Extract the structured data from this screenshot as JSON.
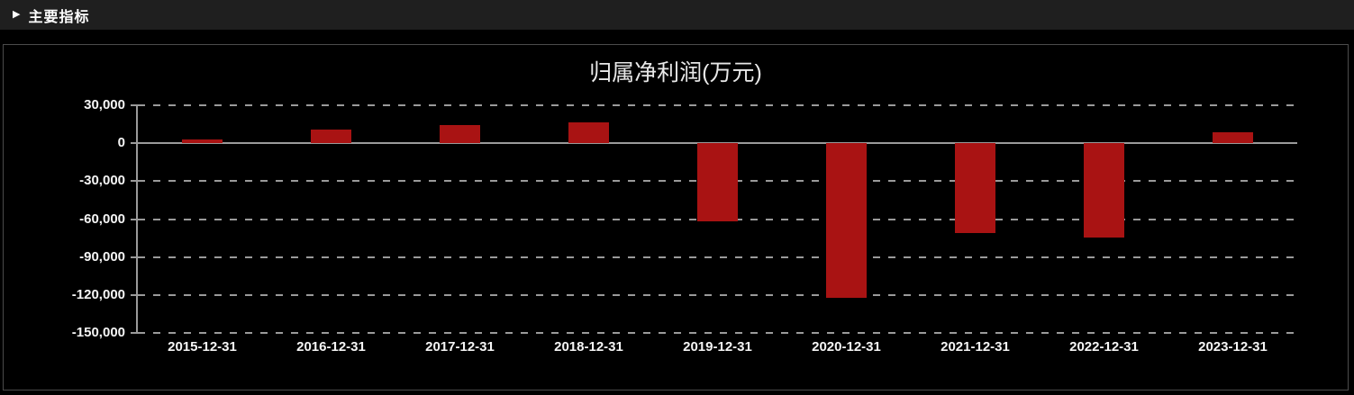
{
  "header": {
    "title": "主要指标",
    "arrow_icon": "▶"
  },
  "chart": {
    "title": "归属净利润(万元)"
  },
  "chart_data": {
    "type": "bar",
    "title": "归属净利润(万元)",
    "unit": "万元",
    "categories": [
      "2015-12-31",
      "2016-12-31",
      "2017-12-31",
      "2018-12-31",
      "2019-12-31",
      "2020-12-31",
      "2021-12-31",
      "2022-12-31",
      "2023-12-31"
    ],
    "values": [
      3000,
      11000,
      14300,
      16300,
      -61500,
      -122500,
      -71000,
      -74500,
      9000
    ],
    "yticks": [
      {
        "value": 30000,
        "label": "30,000"
      },
      {
        "value": 0,
        "label": "0"
      },
      {
        "value": -30000,
        "label": "-30,000"
      },
      {
        "value": -60000,
        "label": "-60,000"
      },
      {
        "value": -90000,
        "label": "-90,000"
      },
      {
        "value": -120000,
        "label": "-120,000"
      },
      {
        "value": -150000,
        "label": "-150,000"
      }
    ],
    "ylim": [
      -150000,
      30000
    ],
    "xlabel": "",
    "ylabel": "",
    "grid": "dashed-horizontal",
    "legend": "none",
    "bar_color": "#a91313"
  },
  "colors": {
    "background": "#000000",
    "header_bg": "#1f1f1f",
    "panel_border": "#4b4b4b",
    "grid": "#9a9a9a",
    "bar": "#a91313",
    "axis_text": "#f5f5f5",
    "title_text": "#e8e8e8"
  }
}
